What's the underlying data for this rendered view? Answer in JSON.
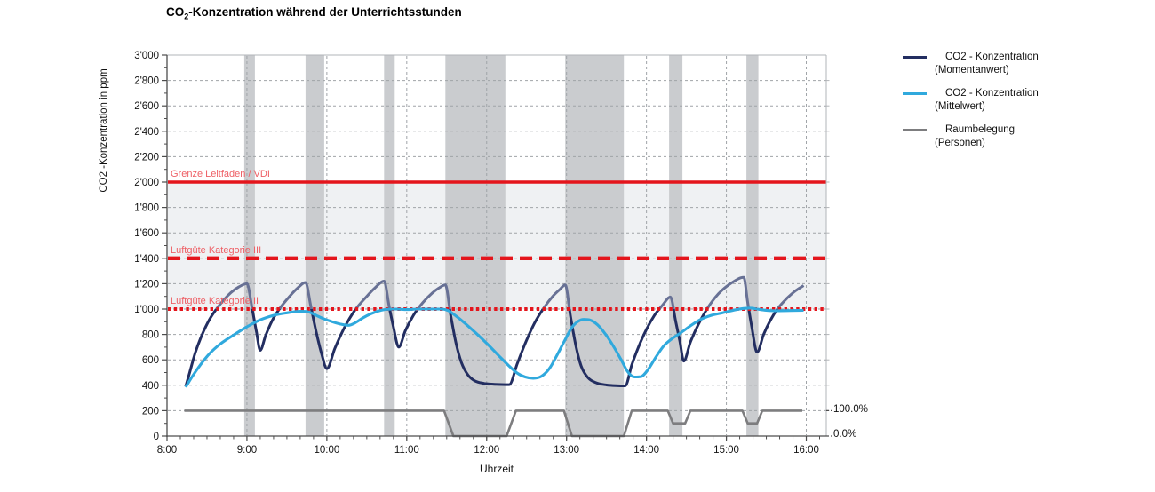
{
  "title": {
    "prefix": "CO",
    "sub": "2",
    "rest": "-Konzentration während der Unterrichtsstunden"
  },
  "legend": [
    {
      "label_line1": "CO2 - Konzentration",
      "label_line2": "(Momentanwert)",
      "color": "#232e61"
    },
    {
      "label_line1": "CO2 - Konzentration",
      "label_line2": "(Mittelwert)",
      "color": "#30a9dd"
    },
    {
      "label_line1": "Raumbelegung",
      "label_line2": "(Personen)",
      "color": "#7d7d7f"
    }
  ],
  "chart_data": {
    "type": "line",
    "title": "CO2-Konzentration während der Unterrichtsstunden",
    "xlabel": "Uhrzeit",
    "ylabel": "CO2 -Konzentration in ppm",
    "ylim": [
      0,
      3000
    ],
    "y_major_step": 200,
    "y_minor_step": 100,
    "y_tick_labels": [
      "0",
      "200",
      "400",
      "600",
      "800",
      "1'000",
      "1'200",
      "1'400",
      "1'600",
      "1'800",
      "2'000",
      "2'200",
      "2'400",
      "2'600",
      "2'800",
      "3'000"
    ],
    "x_domain_minutes": [
      0,
      495
    ],
    "x_minor_step_minutes": 10,
    "x_hour_ticks": [
      {
        "t": 0,
        "label": "8:00"
      },
      {
        "t": 60,
        "label": "9:00"
      },
      {
        "t": 120,
        "label": "10:00"
      },
      {
        "t": 180,
        "label": "11:00"
      },
      {
        "t": 240,
        "label": "12:00"
      },
      {
        "t": 300,
        "label": "13:00"
      },
      {
        "t": 360,
        "label": "14:00"
      },
      {
        "t": 420,
        "label": "15:00"
      },
      {
        "t": 480,
        "label": "16:00"
      }
    ],
    "grid": true,
    "legend_position": "right",
    "comfort_zone": {
      "from": 1000,
      "to": 2000,
      "color": "#eff1f3"
    },
    "colors": {
      "pause_band": "#cacccf",
      "grid": "#a0a4a8",
      "axis": "#4d4d4d",
      "border": "#b2b5b8",
      "threshold": "#e4151c"
    },
    "pause_bands_minutes": [
      [
        58,
        66
      ],
      [
        104,
        118
      ],
      [
        163,
        171
      ],
      [
        209,
        254
      ],
      [
        299,
        343
      ],
      [
        377,
        387
      ],
      [
        435,
        444
      ]
    ],
    "thresholds": [
      {
        "label": "Grenze Leitfaden  / VDI",
        "value": 2000,
        "style": "solid"
      },
      {
        "label": "Luftgüte  Kategorie  III",
        "value": 1400,
        "style": "dashed"
      },
      {
        "label": "Luftgüte  Kategorie  II",
        "value": 1000,
        "style": "dotted"
      }
    ],
    "right_axis_labels": [
      {
        "text": "100.0%",
        "percent": 100
      },
      {
        "text": "0.0%",
        "percent": 0
      }
    ],
    "occupancy_scale_note": "100% = 200 ppm axis height",
    "series": [
      {
        "name": "CO2 - Konzentration (Momentanwert)",
        "color": "#232e61",
        "color_above_1000": "#687195",
        "unit": "ppm",
        "points": [
          [
            14,
            390
          ],
          [
            17,
            500
          ],
          [
            21,
            650
          ],
          [
            26,
            790
          ],
          [
            32,
            920
          ],
          [
            40,
            1040
          ],
          [
            48,
            1130
          ],
          [
            54,
            1175
          ],
          [
            60,
            1200
          ],
          [
            64,
            1000
          ],
          [
            67,
            830
          ],
          [
            70,
            675
          ],
          [
            74,
            790
          ],
          [
            79,
            910
          ],
          [
            85,
            1010
          ],
          [
            92,
            1100
          ],
          [
            98,
            1165
          ],
          [
            104,
            1210
          ],
          [
            108,
            1020
          ],
          [
            112,
            820
          ],
          [
            116,
            650
          ],
          [
            120,
            530
          ],
          [
            126,
            690
          ],
          [
            133,
            850
          ],
          [
            141,
            990
          ],
          [
            150,
            1100
          ],
          [
            156,
            1165
          ],
          [
            163,
            1220
          ],
          [
            167,
            1010
          ],
          [
            170,
            860
          ],
          [
            174,
            700
          ],
          [
            179,
            830
          ],
          [
            185,
            950
          ],
          [
            192,
            1050
          ],
          [
            199,
            1125
          ],
          [
            204,
            1165
          ],
          [
            209,
            1190
          ],
          [
            213,
            950
          ],
          [
            217,
            730
          ],
          [
            221,
            580
          ],
          [
            226,
            480
          ],
          [
            231,
            435
          ],
          [
            238,
            415
          ],
          [
            246,
            408
          ],
          [
            257,
            405
          ],
          [
            263,
            570
          ],
          [
            269,
            730
          ],
          [
            276,
            890
          ],
          [
            283,
            1010
          ],
          [
            290,
            1105
          ],
          [
            295,
            1155
          ],
          [
            299,
            1190
          ],
          [
            303,
            940
          ],
          [
            307,
            710
          ],
          [
            311,
            550
          ],
          [
            316,
            460
          ],
          [
            322,
            420
          ],
          [
            330,
            402
          ],
          [
            337,
            397
          ],
          [
            344,
            395
          ],
          [
            349,
            560
          ],
          [
            354,
            700
          ],
          [
            360,
            840
          ],
          [
            366,
            950
          ],
          [
            372,
            1030
          ],
          [
            378,
            1095
          ],
          [
            382,
            900
          ],
          [
            385,
            750
          ],
          [
            388,
            590
          ],
          [
            393,
            740
          ],
          [
            399,
            880
          ],
          [
            406,
            1010
          ],
          [
            414,
            1120
          ],
          [
            423,
            1200
          ],
          [
            433,
            1250
          ],
          [
            436,
            1050
          ],
          [
            439,
            860
          ],
          [
            443,
            660
          ],
          [
            448,
            800
          ],
          [
            453,
            910
          ],
          [
            459,
            1010
          ],
          [
            466,
            1090
          ],
          [
            472,
            1145
          ],
          [
            478,
            1185
          ]
        ]
      },
      {
        "name": "CO2 - Konzentration (Mittelwert)",
        "color": "#30a9dd",
        "unit": "ppm",
        "points": [
          [
            14,
            385
          ],
          [
            19,
            470
          ],
          [
            25,
            560
          ],
          [
            32,
            650
          ],
          [
            40,
            725
          ],
          [
            50,
            795
          ],
          [
            60,
            860
          ],
          [
            70,
            915
          ],
          [
            80,
            950
          ],
          [
            90,
            970
          ],
          [
            100,
            982
          ],
          [
            106,
            978
          ],
          [
            112,
            950
          ],
          [
            118,
            922
          ],
          [
            124,
            900
          ],
          [
            130,
            882
          ],
          [
            136,
            872
          ],
          [
            141,
            890
          ],
          [
            147,
            930
          ],
          [
            153,
            962
          ],
          [
            159,
            985
          ],
          [
            165,
            998
          ],
          [
            172,
            1000
          ],
          [
            180,
            996
          ],
          [
            188,
            1000
          ],
          [
            197,
            1000
          ],
          [
            206,
            1000
          ],
          [
            211,
            988
          ],
          [
            217,
            945
          ],
          [
            224,
            885
          ],
          [
            232,
            810
          ],
          [
            240,
            730
          ],
          [
            248,
            645
          ],
          [
            256,
            560
          ],
          [
            263,
            495
          ],
          [
            269,
            465
          ],
          [
            275,
            455
          ],
          [
            281,
            470
          ],
          [
            287,
            530
          ],
          [
            293,
            640
          ],
          [
            299,
            760
          ],
          [
            304,
            855
          ],
          [
            309,
            905
          ],
          [
            313,
            918
          ],
          [
            318,
            912
          ],
          [
            323,
            878
          ],
          [
            329,
            805
          ],
          [
            335,
            710
          ],
          [
            341,
            600
          ],
          [
            346,
            505
          ],
          [
            351,
            465
          ],
          [
            356,
            468
          ],
          [
            361,
            520
          ],
          [
            367,
            620
          ],
          [
            373,
            710
          ],
          [
            379,
            765
          ],
          [
            386,
            815
          ],
          [
            393,
            868
          ],
          [
            400,
            915
          ],
          [
            408,
            948
          ],
          [
            417,
            970
          ],
          [
            426,
            992
          ],
          [
            433,
            1005
          ],
          [
            438,
            1008
          ],
          [
            443,
            1000
          ],
          [
            450,
            990
          ],
          [
            458,
            987
          ],
          [
            468,
            988
          ],
          [
            478,
            990
          ]
        ]
      },
      {
        "name": "Raumbelegung (Personen)",
        "color": "#7d7d7f",
        "unit": "percent",
        "points": [
          [
            13,
            100
          ],
          [
            208,
            100
          ],
          [
            215,
            0
          ],
          [
            255,
            0
          ],
          [
            262,
            100
          ],
          [
            298,
            100
          ],
          [
            304,
            0
          ],
          [
            343,
            0
          ],
          [
            349,
            100
          ],
          [
            376,
            100
          ],
          [
            380,
            50
          ],
          [
            389,
            50
          ],
          [
            393,
            100
          ],
          [
            432,
            100
          ],
          [
            436,
            50
          ],
          [
            443,
            50
          ],
          [
            447,
            100
          ],
          [
            477,
            100
          ]
        ]
      }
    ]
  }
}
